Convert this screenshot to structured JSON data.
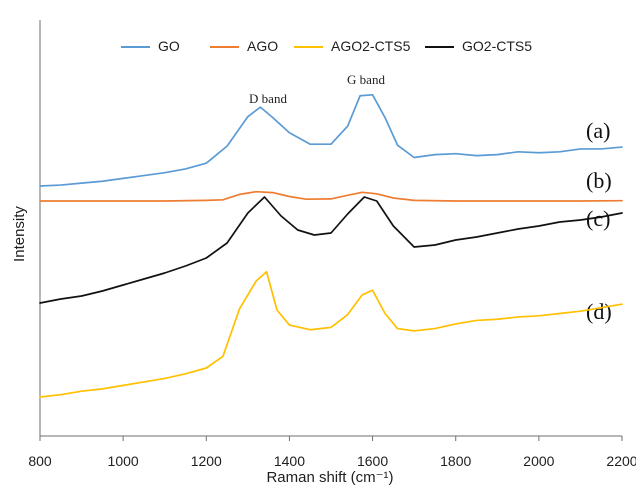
{
  "chart_data": {
    "type": "line",
    "title": "",
    "xlabel": "Raman shift (cm⁻¹)",
    "ylabel": "Intensity",
    "xlim": [
      800,
      2200
    ],
    "x_ticks": [
      800,
      1000,
      1200,
      1400,
      1600,
      1800,
      2000,
      2200
    ],
    "grid": false,
    "legend": {
      "placement": "top",
      "entries": [
        "GO",
        "AGO",
        "AGO2-CTS5",
        "GO2-CTS5"
      ]
    },
    "annotations": [
      "D band",
      "G band"
    ],
    "curve_labels": [
      "(a)",
      "(b)",
      "(c)",
      "(d)"
    ],
    "series": [
      {
        "name": "GO",
        "label": "(a)",
        "color": "#5b9bd5",
        "points": [
          [
            800,
            0.0
          ],
          [
            850,
            0.01
          ],
          [
            900,
            0.03
          ],
          [
            950,
            0.05
          ],
          [
            1000,
            0.08
          ],
          [
            1050,
            0.11
          ],
          [
            1100,
            0.14
          ],
          [
            1150,
            0.18
          ],
          [
            1200,
            0.24
          ],
          [
            1250,
            0.42
          ],
          [
            1300,
            0.73
          ],
          [
            1330,
            0.83
          ],
          [
            1360,
            0.72
          ],
          [
            1400,
            0.56
          ],
          [
            1450,
            0.44
          ],
          [
            1500,
            0.44
          ],
          [
            1540,
            0.63
          ],
          [
            1570,
            0.95
          ],
          [
            1600,
            0.96
          ],
          [
            1630,
            0.72
          ],
          [
            1660,
            0.43
          ],
          [
            1700,
            0.3
          ],
          [
            1750,
            0.33
          ],
          [
            1800,
            0.34
          ],
          [
            1850,
            0.32
          ],
          [
            1900,
            0.33
          ],
          [
            1950,
            0.36
          ],
          [
            2000,
            0.35
          ],
          [
            2050,
            0.36
          ],
          [
            2100,
            0.39
          ],
          [
            2150,
            0.39
          ],
          [
            2200,
            0.41
          ]
        ]
      },
      {
        "name": "AGO",
        "label": "(b)",
        "color": "#ed7d31",
        "points": [
          [
            800,
            0.0
          ],
          [
            900,
            0.0
          ],
          [
            1000,
            0.0
          ],
          [
            1100,
            0.0
          ],
          [
            1200,
            0.02
          ],
          [
            1240,
            0.04
          ],
          [
            1280,
            0.22
          ],
          [
            1320,
            0.31
          ],
          [
            1360,
            0.28
          ],
          [
            1400,
            0.15
          ],
          [
            1440,
            0.06
          ],
          [
            1500,
            0.07
          ],
          [
            1540,
            0.19
          ],
          [
            1575,
            0.29
          ],
          [
            1610,
            0.24
          ],
          [
            1650,
            0.1
          ],
          [
            1700,
            0.02
          ],
          [
            1800,
            0.0
          ],
          [
            1900,
            0.0
          ],
          [
            2000,
            0.0
          ],
          [
            2100,
            0.0
          ],
          [
            2200,
            0.01
          ]
        ]
      },
      {
        "name": "GO2-CTS5",
        "label": "(c)",
        "color": "#111111",
        "points": [
          [
            800,
            0.0
          ],
          [
            850,
            0.04
          ],
          [
            900,
            0.07
          ],
          [
            950,
            0.12
          ],
          [
            1000,
            0.18
          ],
          [
            1050,
            0.24
          ],
          [
            1100,
            0.3
          ],
          [
            1150,
            0.37
          ],
          [
            1200,
            0.45
          ],
          [
            1250,
            0.6
          ],
          [
            1300,
            0.9
          ],
          [
            1340,
            1.06
          ],
          [
            1380,
            0.87
          ],
          [
            1420,
            0.73
          ],
          [
            1460,
            0.68
          ],
          [
            1500,
            0.7
          ],
          [
            1540,
            0.89
          ],
          [
            1580,
            1.06
          ],
          [
            1610,
            1.02
          ],
          [
            1650,
            0.77
          ],
          [
            1700,
            0.56
          ],
          [
            1750,
            0.58
          ],
          [
            1800,
            0.63
          ],
          [
            1850,
            0.66
          ],
          [
            1900,
            0.7
          ],
          [
            1950,
            0.74
          ],
          [
            2000,
            0.77
          ],
          [
            2050,
            0.81
          ],
          [
            2100,
            0.83
          ],
          [
            2150,
            0.86
          ],
          [
            2200,
            0.9
          ]
        ]
      },
      {
        "name": "AGO2-CTS5",
        "label": "(d)",
        "color": "#ffc000",
        "points": [
          [
            800,
            0.0
          ],
          [
            850,
            0.02
          ],
          [
            900,
            0.05
          ],
          [
            950,
            0.07
          ],
          [
            1000,
            0.1
          ],
          [
            1050,
            0.13
          ],
          [
            1100,
            0.16
          ],
          [
            1150,
            0.2
          ],
          [
            1200,
            0.25
          ],
          [
            1240,
            0.35
          ],
          [
            1280,
            0.76
          ],
          [
            1320,
            1.0
          ],
          [
            1345,
            1.08
          ],
          [
            1370,
            0.75
          ],
          [
            1400,
            0.62
          ],
          [
            1450,
            0.58
          ],
          [
            1500,
            0.6
          ],
          [
            1540,
            0.71
          ],
          [
            1575,
            0.88
          ],
          [
            1600,
            0.92
          ],
          [
            1630,
            0.72
          ],
          [
            1660,
            0.59
          ],
          [
            1700,
            0.57
          ],
          [
            1750,
            0.59
          ],
          [
            1800,
            0.63
          ],
          [
            1850,
            0.66
          ],
          [
            1900,
            0.67
          ],
          [
            1950,
            0.69
          ],
          [
            2000,
            0.7
          ],
          [
            2050,
            0.72
          ],
          [
            2100,
            0.74
          ],
          [
            2150,
            0.77
          ],
          [
            2200,
            0.8
          ]
        ]
      }
    ]
  }
}
